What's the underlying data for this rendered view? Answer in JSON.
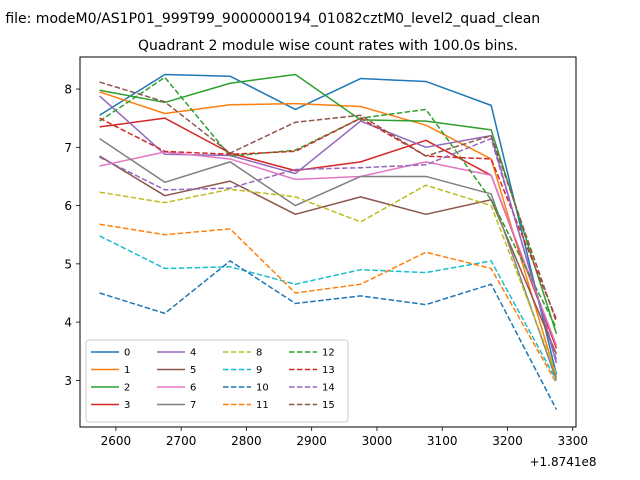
{
  "suptitle": "n file: modeM0/AS1P01_999T99_9000000194_01082cztM0_level2_quad_clean",
  "chart_data": {
    "type": "line",
    "title": "Quadrant 2 module wise count rates with 100.0s bins.",
    "x_offset_label": "+1.8741e8",
    "x": [
      2575,
      2675,
      2775,
      2875,
      2975,
      3075,
      3175,
      3275
    ],
    "xlim": [
      2545,
      3305
    ],
    "ylim": [
      2.2,
      8.55
    ],
    "xticks": [
      2600,
      2700,
      2800,
      2900,
      3000,
      3100,
      3200,
      3300
    ],
    "xtick_labels": [
      "2600",
      "2700",
      "2800",
      "2900",
      "3000",
      "3100",
      "3200",
      "3300"
    ],
    "yticks": [
      3,
      4,
      5,
      6,
      7,
      8
    ],
    "ytick_labels": [
      "3",
      "4",
      "5",
      "6",
      "7",
      "8"
    ],
    "grid": false,
    "legend_position": "lower-left",
    "legend_columns": 4,
    "series": [
      {
        "name": "0",
        "color": "#1f77b4",
        "dash": "solid",
        "values": [
          7.55,
          8.25,
          8.22,
          7.65,
          8.18,
          8.13,
          7.72,
          3.1
        ]
      },
      {
        "name": "1",
        "color": "#ff7f0e",
        "dash": "solid",
        "values": [
          7.95,
          7.58,
          7.73,
          7.75,
          7.7,
          7.38,
          6.8,
          3.05
        ]
      },
      {
        "name": "2",
        "color": "#2ca02c",
        "dash": "solid",
        "values": [
          7.98,
          7.77,
          8.1,
          8.25,
          7.47,
          7.45,
          7.3,
          3.8
        ]
      },
      {
        "name": "3",
        "color": "#d62728",
        "dash": "solid",
        "values": [
          7.35,
          7.5,
          6.9,
          6.6,
          6.75,
          7.12,
          6.52,
          3.55
        ]
      },
      {
        "name": "4",
        "color": "#9467bd",
        "dash": "solid",
        "values": [
          7.88,
          6.88,
          6.86,
          6.55,
          7.45,
          7.0,
          7.2,
          3.3
        ]
      },
      {
        "name": "5",
        "color": "#8c564b",
        "dash": "solid",
        "values": [
          6.85,
          6.17,
          6.42,
          5.85,
          6.15,
          5.85,
          6.1,
          3.45
        ]
      },
      {
        "name": "6",
        "color": "#e377c2",
        "dash": "solid",
        "values": [
          6.68,
          6.92,
          6.8,
          6.45,
          6.5,
          6.75,
          6.52,
          3.6
        ]
      },
      {
        "name": "7",
        "color": "#7f7f7f",
        "dash": "solid",
        "values": [
          7.15,
          6.4,
          6.75,
          6.0,
          6.5,
          6.5,
          6.2,
          3.0
        ]
      },
      {
        "name": "8",
        "color": "#bcbd22",
        "dash": "dashed",
        "values": [
          6.23,
          6.05,
          6.28,
          6.15,
          5.72,
          6.35,
          6.0,
          3.1
        ]
      },
      {
        "name": "9",
        "color": "#17becf",
        "dash": "dashed",
        "values": [
          5.48,
          4.92,
          4.95,
          4.65,
          4.9,
          4.85,
          5.05,
          3.0
        ]
      },
      {
        "name": "10",
        "color": "#1f77b4",
        "dash": "dashed",
        "values": [
          4.5,
          4.15,
          5.05,
          4.32,
          4.45,
          4.3,
          4.65,
          2.5
        ]
      },
      {
        "name": "11",
        "color": "#ff7f0e",
        "dash": "dashed",
        "values": [
          5.68,
          5.5,
          5.6,
          4.5,
          4.65,
          5.2,
          4.92,
          2.95
        ]
      },
      {
        "name": "12",
        "color": "#2ca02c",
        "dash": "dashed",
        "values": [
          7.45,
          8.2,
          6.85,
          6.95,
          7.5,
          7.65,
          6.1,
          3.9
        ]
      },
      {
        "name": "13",
        "color": "#d62728",
        "dash": "dashed",
        "values": [
          7.5,
          6.93,
          6.88,
          6.93,
          7.5,
          6.85,
          6.8,
          4.05
        ]
      },
      {
        "name": "14",
        "color": "#9467bd",
        "dash": "dashed",
        "values": [
          6.83,
          6.27,
          6.3,
          6.62,
          6.65,
          6.7,
          7.15,
          3.35
        ]
      },
      {
        "name": "15",
        "color": "#8c564b",
        "dash": "dashed",
        "values": [
          8.12,
          7.78,
          6.9,
          7.43,
          7.55,
          6.85,
          7.2,
          4.0
        ]
      }
    ]
  }
}
